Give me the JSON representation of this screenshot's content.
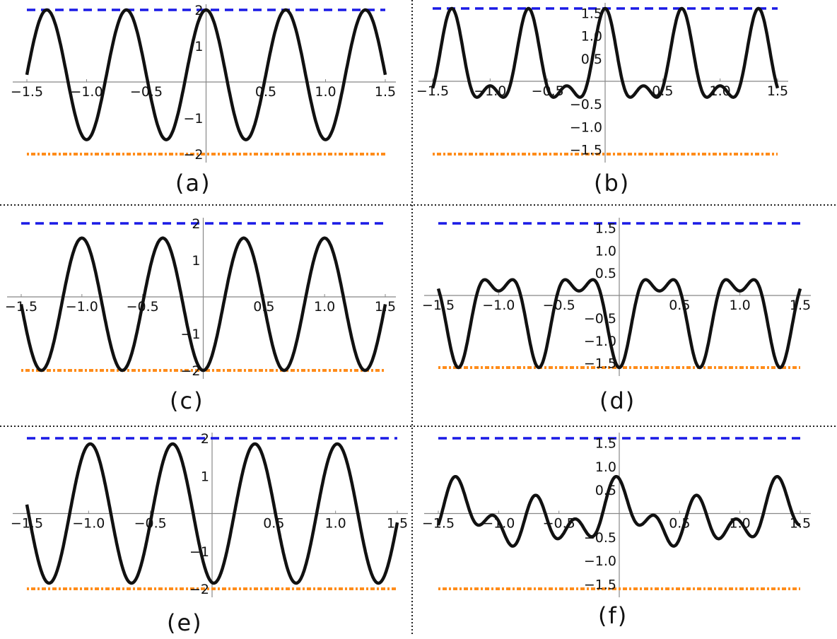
{
  "chart_data": [
    {
      "type": "line",
      "panel_label": "(a)",
      "xlim": [
        -1.5,
        1.5
      ],
      "ylim": [
        -2,
        2
      ],
      "x_ticks": [
        "-1.5",
        "-1.0",
        "-0.5",
        "0.5",
        "1.0",
        "1.5"
      ],
      "y_ticks": [
        "2",
        "1",
        "-1",
        "-2"
      ],
      "upper_bound": 2,
      "lower_bound": -2,
      "curve": {
        "amplitude": 1.8,
        "frequency": 1.5,
        "phase": 0,
        "offset": 0.2,
        "terms": "cos"
      },
      "colors": {
        "curve": "#111111",
        "upper": "#1a1ae6",
        "lower": "#ff8c1a"
      }
    },
    {
      "type": "line",
      "panel_label": "(b)",
      "xlim": [
        -1.5,
        1.5
      ],
      "ylim": [
        -1.6,
        1.6
      ],
      "x_ticks": [
        "-1.5",
        "-1.0",
        "-0.5",
        "0.5",
        "1.0",
        "1.5"
      ],
      "y_ticks": [
        "1.5",
        "1.0",
        "0.5",
        "-0.5",
        "-1.0",
        "-1.5"
      ],
      "upper_bound": 1.6,
      "lower_bound": -1.6,
      "curve": {
        "amplitude": 1.6,
        "frequency": 1.5,
        "phase": 0,
        "offset": 0,
        "terms": "double-dip"
      },
      "colors": {
        "curve": "#111111",
        "upper": "#1a1ae6",
        "lower": "#ff8c1a"
      }
    },
    {
      "type": "line",
      "panel_label": "(c)",
      "xlim": [
        -1.5,
        1.5
      ],
      "ylim": [
        -2,
        2
      ],
      "x_ticks": [
        "-1.5",
        "-1.0",
        "-0.5",
        "0.5",
        "1.0",
        "1.5"
      ],
      "y_ticks": [
        "2",
        "1",
        "-1",
        "-2"
      ],
      "upper_bound": 2,
      "lower_bound": -2,
      "curve": {
        "amplitude": -1.8,
        "frequency": 1.5,
        "phase": 0,
        "offset": -0.2,
        "terms": "cos"
      },
      "colors": {
        "curve": "#111111",
        "upper": "#1a1ae6",
        "lower": "#ff8c1a"
      }
    },
    {
      "type": "line",
      "panel_label": "(d)",
      "xlim": [
        -1.5,
        1.5
      ],
      "ylim": [
        -1.6,
        1.6
      ],
      "x_ticks": [
        "-1.5",
        "-1.0",
        "-0.5",
        "0.5",
        "1.0",
        "1.5"
      ],
      "y_ticks": [
        "1.5",
        "1.0",
        "0.5",
        "-0.5",
        "-1.0",
        "-1.5"
      ],
      "upper_bound": 1.6,
      "lower_bound": -1.6,
      "curve": {
        "amplitude": -1.6,
        "frequency": 1.5,
        "phase": 0,
        "offset": 0,
        "terms": "double-dip"
      },
      "colors": {
        "curve": "#111111",
        "upper": "#1a1ae6",
        "lower": "#ff8c1a"
      }
    },
    {
      "type": "line",
      "panel_label": "(e)",
      "xlim": [
        -1.5,
        1.5
      ],
      "ylim": [
        -2,
        2
      ],
      "x_ticks": [
        "-1.5",
        "-1.0",
        "-0.5",
        "0.5",
        "1.0",
        "1.5"
      ],
      "y_ticks": [
        "2",
        "1",
        "-1",
        "-2"
      ],
      "upper_bound": 2,
      "lower_bound": -2,
      "curve": {
        "amplitude": 1.85,
        "frequency": 1.5,
        "phase": -1.7,
        "offset": 0,
        "terms": "sin"
      },
      "colors": {
        "curve": "#111111",
        "upper": "#1a1ae6",
        "lower": "#ff8c1a"
      }
    },
    {
      "type": "line",
      "panel_label": "(f)",
      "xlim": [
        -1.5,
        1.5
      ],
      "ylim": [
        -1.6,
        1.6
      ],
      "x_ticks": [
        "-1.5",
        "-1.0",
        "-0.5",
        "0.5",
        "1.0",
        "1.5"
      ],
      "y_ticks": [
        "1.5",
        "1.0",
        "0.5",
        "-0.5",
        "-1.0",
        "-1.5"
      ],
      "upper_bound": 1.6,
      "lower_bound": -1.6,
      "curve": {
        "amplitude": 0.5,
        "frequency": 1.5,
        "phase": 0,
        "offset": -0.1,
        "terms": "mixed"
      },
      "colors": {
        "curve": "#111111",
        "upper": "#1a1ae6",
        "lower": "#ff8c1a"
      }
    }
  ]
}
